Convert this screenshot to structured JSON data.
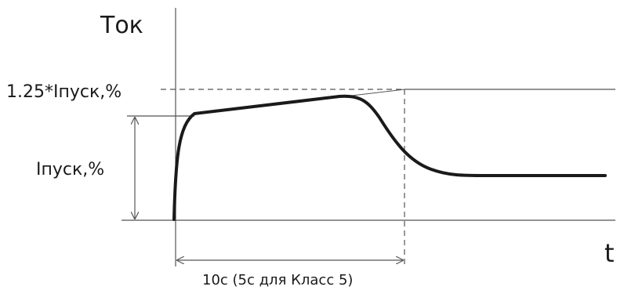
{
  "labels": {
    "y_axis": "Ток",
    "x_axis": "t",
    "upper_level": "1.25*Iпуск,%",
    "start_current": "Iпуск,%",
    "time_span": "10с (5с для Класс 5)"
  },
  "colors": {
    "curve": "#1a1a1a",
    "guides": "#555555",
    "text": "#1a1a1a"
  }
}
